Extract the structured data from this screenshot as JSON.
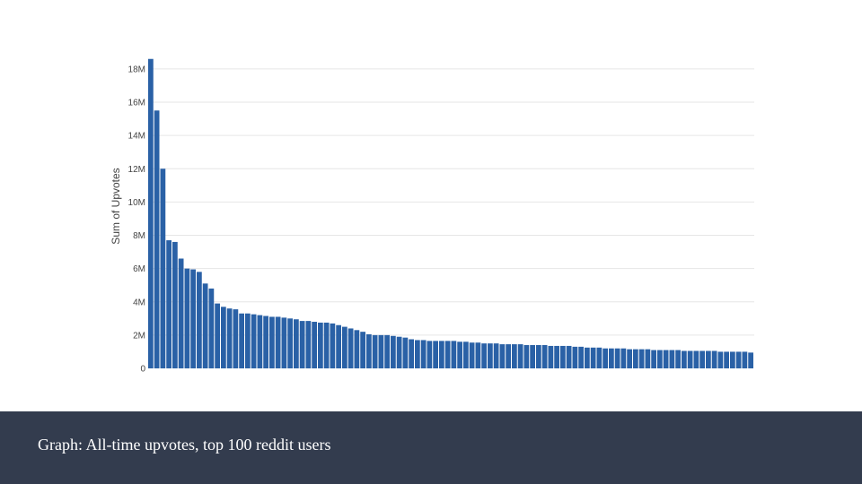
{
  "caption": "Graph: All-time upvotes, top 100 reddit users",
  "colors": {
    "bar": "#2a61a6",
    "caption_bar": "#333c4e",
    "caption_text": "#ffffff",
    "grid": "#e6e6e6"
  },
  "chart_data": {
    "type": "bar",
    "title": "",
    "xlabel": "",
    "ylabel": "Sum of Upvotes",
    "ylim": [
      0,
      19000000
    ],
    "yticks": [
      0,
      2000000,
      4000000,
      6000000,
      8000000,
      10000000,
      12000000,
      14000000,
      16000000,
      18000000
    ],
    "ytick_labels": [
      "0",
      "2M",
      "4M",
      "6M",
      "8M",
      "10M",
      "12M",
      "14M",
      "16M",
      "18M"
    ],
    "grid": true,
    "legend": "none",
    "series": [
      {
        "values": [
          18600000,
          15500000,
          12000000,
          7700000,
          7600000,
          6600000,
          6000000,
          5950000,
          5800000,
          5100000,
          4800000,
          3900000,
          3700000,
          3600000,
          3550000,
          3300000,
          3300000,
          3250000,
          3200000,
          3150000,
          3100000,
          3100000,
          3050000,
          3000000,
          2950000,
          2850000,
          2850000,
          2800000,
          2750000,
          2750000,
          2700000,
          2600000,
          2500000,
          2400000,
          2300000,
          2200000,
          2050000,
          2000000,
          2000000,
          2000000,
          1950000,
          1900000,
          1850000,
          1750000,
          1700000,
          1700000,
          1650000,
          1650000,
          1650000,
          1650000,
          1650000,
          1600000,
          1600000,
          1550000,
          1550000,
          1500000,
          1500000,
          1500000,
          1450000,
          1450000,
          1450000,
          1450000,
          1400000,
          1400000,
          1400000,
          1400000,
          1350000,
          1350000,
          1350000,
          1350000,
          1300000,
          1300000,
          1250000,
          1250000,
          1250000,
          1200000,
          1200000,
          1200000,
          1200000,
          1150000,
          1150000,
          1150000,
          1150000,
          1100000,
          1100000,
          1100000,
          1100000,
          1100000,
          1050000,
          1050000,
          1050000,
          1050000,
          1050000,
          1050000,
          1000000,
          1000000,
          1000000,
          1000000,
          1000000,
          950000
        ]
      }
    ]
  }
}
